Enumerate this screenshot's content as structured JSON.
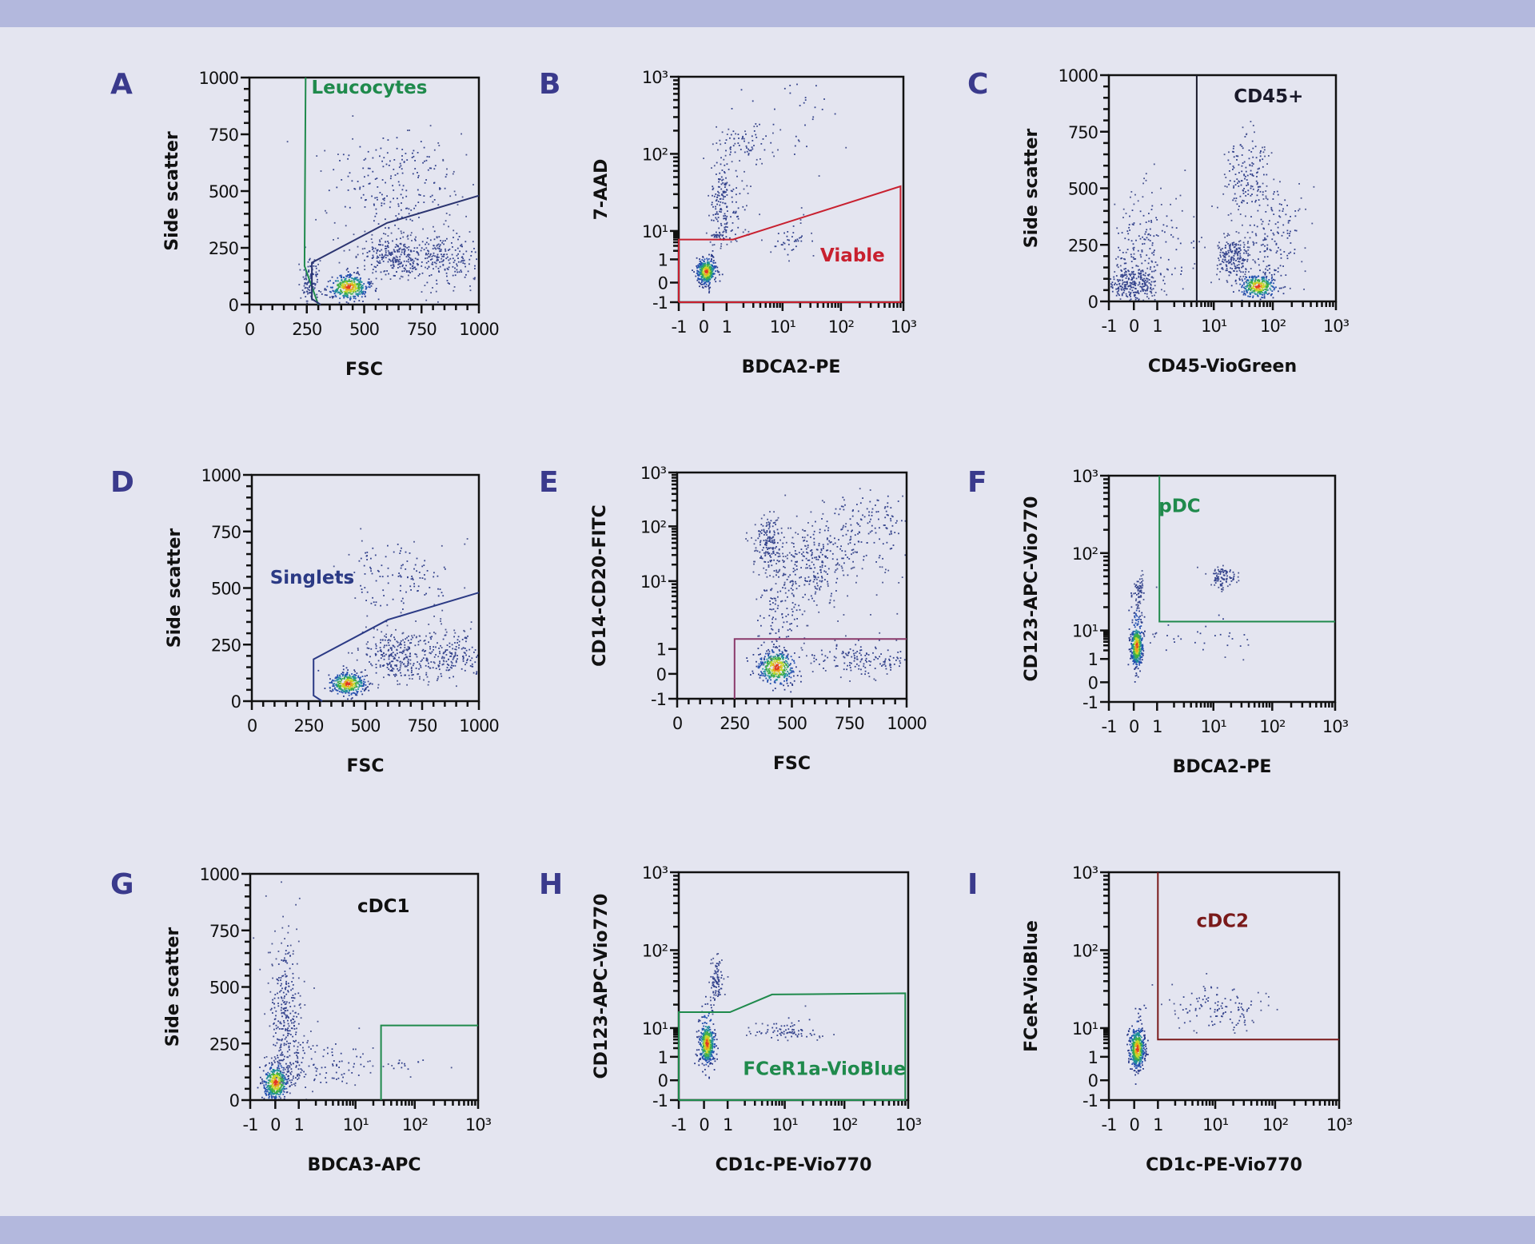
{
  "figure": {
    "background": "#e4e5f0",
    "banner_color": "#b3b8dd",
    "panel_letter_color": "#3a3a8c"
  },
  "chart_data": [
    {
      "panel": "A",
      "type": "scatter",
      "x_axis": {
        "label": "FSC",
        "type": "linear",
        "range": [
          0,
          1000
        ],
        "ticks": [
          0,
          250,
          500,
          750,
          1000
        ],
        "tick_labels": [
          "0",
          "250",
          "500",
          "750",
          "1000"
        ]
      },
      "y_axis": {
        "label": "Side scatter",
        "type": "linear",
        "range": [
          0,
          1000
        ],
        "ticks": [
          0,
          250,
          500,
          750,
          1000
        ],
        "tick_labels": [
          "0",
          "250",
          "500",
          "750",
          "1000"
        ]
      },
      "gates": [
        {
          "label": "Leucocytes",
          "color": "#1f8a4c",
          "vertices": [
            [
              245,
              1000
            ],
            [
              240,
              170
            ],
            [
              300,
              0
            ]
          ]
        },
        {
          "label": "",
          "color": "#2b3470",
          "vertices": [
            [
              310,
              0
            ],
            [
              272,
              25
            ],
            [
              272,
              185
            ],
            [
              600,
              360
            ],
            [
              1000,
              480
            ]
          ]
        }
      ],
      "populations": [
        {
          "x": 430,
          "y": 80,
          "sx": 45,
          "sy": 28,
          "n": 380,
          "dense": true
        },
        {
          "x": 630,
          "y": 210,
          "sx": 80,
          "sy": 50,
          "n": 260
        },
        {
          "x": 850,
          "y": 210,
          "sx": 110,
          "sy": 70,
          "n": 240
        },
        {
          "x": 600,
          "y": 540,
          "sx": 150,
          "sy": 130,
          "n": 220
        },
        {
          "x": 265,
          "y": 110,
          "sx": 22,
          "sy": 55,
          "n": 110
        }
      ]
    },
    {
      "panel": "B",
      "type": "scatter",
      "x_axis": {
        "label": "BDCA2-PE",
        "type": "biexponential",
        "range": [
          -1,
          1000
        ],
        "ticks": [
          -1,
          0,
          1,
          10,
          100,
          1000
        ],
        "tick_labels": [
          "-1",
          "0",
          "1",
          "10¹",
          "10²",
          "10³"
        ]
      },
      "y_axis": {
        "label": "7-AAD",
        "type": "biexponential",
        "range": [
          -1,
          1000
        ],
        "ticks": [
          -1,
          0,
          1,
          10,
          100,
          1000
        ],
        "tick_labels": [
          "-1",
          "0",
          "1",
          "10¹",
          "10²",
          "10³"
        ]
      },
      "gates": [
        {
          "label": "Viable",
          "color": "#c8202f",
          "vertices": [
            [
              -1,
              -1
            ],
            [
              -1,
              5
            ],
            [
              1.3,
              5
            ],
            [
              900,
              38
            ],
            [
              900,
              -1
            ],
            [
              -1,
              -1
            ]
          ]
        }
      ],
      "populations": [
        {
          "x": 0.1,
          "y": 0.5,
          "sx": 0.2,
          "sy": 0.28,
          "n": 420,
          "dense": true
        },
        {
          "x": 0.8,
          "y": 20,
          "sx": 0.3,
          "sy": 0.4,
          "n": 220
        },
        {
          "x": 2,
          "y": 140,
          "sx": 0.3,
          "sy": 0.12,
          "n": 60
        },
        {
          "x": 15,
          "y": 4,
          "sx": 0.2,
          "sy": 0.3,
          "n": 40
        },
        {
          "x": 8,
          "y": 300,
          "sx": 0.6,
          "sy": 0.4,
          "n": 40
        }
      ]
    },
    {
      "panel": "C",
      "type": "scatter",
      "x_axis": {
        "label": "CD45-VioGreen",
        "type": "biexponential",
        "range": [
          -1,
          1000
        ],
        "ticks": [
          -1,
          0,
          1,
          10,
          100,
          1000
        ],
        "tick_labels": [
          "-1",
          "0",
          "1",
          "10¹",
          "10²",
          "10³"
        ]
      },
      "y_axis": {
        "label": "Side scatter",
        "type": "linear",
        "range": [
          0,
          1000
        ],
        "ticks": [
          0,
          250,
          500,
          750,
          1000
        ],
        "tick_labels": [
          "0",
          "250",
          "500",
          "750",
          "1000"
        ]
      },
      "gates": [
        {
          "label": "CD45+",
          "color": "#1a1a2a",
          "vertices": [
            [
              5,
              0
            ],
            [
              5,
              1000
            ]
          ]
        }
      ],
      "populations": [
        {
          "x": -0.1,
          "y": 80,
          "sx": 0.5,
          "sy": 45,
          "n": 260
        },
        {
          "x": 0.5,
          "y": 240,
          "sx": 0.7,
          "sy": 120,
          "n": 200
        },
        {
          "x": 55,
          "y": 70,
          "sx": 0.15,
          "sy": 25,
          "n": 320,
          "dense": true
        },
        {
          "x": 22,
          "y": 190,
          "sx": 0.15,
          "sy": 45,
          "n": 200
        },
        {
          "x": 35,
          "y": 560,
          "sx": 0.2,
          "sy": 100,
          "n": 160
        },
        {
          "x": 100,
          "y": 300,
          "sx": 0.25,
          "sy": 120,
          "n": 160
        }
      ]
    },
    {
      "panel": "D",
      "type": "scatter",
      "x_axis": {
        "label": "FSC",
        "type": "linear",
        "range": [
          0,
          1000
        ],
        "ticks": [
          0,
          250,
          500,
          750,
          1000
        ],
        "tick_labels": [
          "0",
          "250",
          "500",
          "750",
          "1000"
        ]
      },
      "y_axis": {
        "label": "Side scatter",
        "type": "linear",
        "range": [
          0,
          1000
        ],
        "ticks": [
          0,
          250,
          500,
          750,
          1000
        ],
        "tick_labels": [
          "0",
          "250",
          "500",
          "750",
          "1000"
        ]
      },
      "gates": [
        {
          "label": "Singlets",
          "color": "#2b3a85",
          "vertices": [
            [
              310,
              0
            ],
            [
              272,
              25
            ],
            [
              272,
              185
            ],
            [
              600,
              360
            ],
            [
              1000,
              480
            ]
          ]
        }
      ],
      "populations": [
        {
          "x": 420,
          "y": 80,
          "sx": 40,
          "sy": 25,
          "n": 360,
          "dense": true
        },
        {
          "x": 640,
          "y": 200,
          "sx": 90,
          "sy": 55,
          "n": 260
        },
        {
          "x": 870,
          "y": 200,
          "sx": 100,
          "sy": 60,
          "n": 220
        },
        {
          "x": 650,
          "y": 550,
          "sx": 130,
          "sy": 90,
          "n": 130
        }
      ]
    },
    {
      "panel": "E",
      "type": "scatter",
      "x_axis": {
        "label": "FSC",
        "type": "linear",
        "range": [
          0,
          1000
        ],
        "ticks": [
          0,
          250,
          500,
          750,
          1000
        ],
        "tick_labels": [
          "0",
          "250",
          "500",
          "750",
          "1000"
        ]
      },
      "y_axis": {
        "label": "CD14-CD20-FITC",
        "type": "biexponential",
        "range": [
          -1,
          1000
        ],
        "ticks": [
          -1,
          0,
          1,
          10,
          100,
          1000
        ],
        "tick_labels": [
          "-1",
          "0",
          "1",
          "10¹",
          "10²",
          "10³"
        ]
      },
      "gates": [
        {
          "label": "",
          "color": "#8a3a6b",
          "vertices": [
            [
              250,
              -1
            ],
            [
              250,
              1.4
            ],
            [
              1000,
              1.4
            ]
          ]
        }
      ],
      "populations": [
        {
          "x": 430,
          "y": 0.3,
          "sx": 40,
          "sy": 0.35,
          "n": 380,
          "dense": true
        },
        {
          "x": 400,
          "y": 50,
          "sx": 35,
          "sy": 0.25,
          "n": 170
        },
        {
          "x": 600,
          "y": 20,
          "sx": 90,
          "sy": 0.35,
          "n": 220
        },
        {
          "x": 820,
          "y": 90,
          "sx": 150,
          "sy": 0.4,
          "n": 220
        },
        {
          "x": 450,
          "y": 3,
          "sx": 60,
          "sy": 0.5,
          "n": 130
        },
        {
          "x": 800,
          "y": 0.6,
          "sx": 130,
          "sy": 0.35,
          "n": 170
        }
      ]
    },
    {
      "panel": "F",
      "type": "scatter",
      "x_axis": {
        "label": "BDCA2-PE",
        "type": "biexponential",
        "range": [
          -1,
          1000
        ],
        "ticks": [
          -1,
          0,
          1,
          10,
          100,
          1000
        ],
        "tick_labels": [
          "-1",
          "0",
          "1",
          "10¹",
          "10²",
          "10³"
        ]
      },
      "y_axis": {
        "label": "CD123-APC-Vio770",
        "type": "biexponential",
        "range": [
          -1,
          1000
        ],
        "ticks": [
          -1,
          0,
          1,
          10,
          100,
          1000
        ],
        "tick_labels": [
          "-1",
          "0",
          "1",
          "10¹",
          "10²",
          "10³"
        ]
      },
      "gates": [
        {
          "label": "pDC",
          "color": "#1f8a4c",
          "vertices": [
            [
              1.1,
              1000
            ],
            [
              1.1,
              13
            ],
            [
              1000,
              13
            ]
          ]
        }
      ],
      "populations": [
        {
          "x": 0.1,
          "y": 3,
          "sx": 0.13,
          "sy": 0.38,
          "n": 480,
          "dense": true
        },
        {
          "x": 0.2,
          "y": 35,
          "sx": 0.1,
          "sy": 0.1,
          "n": 60
        },
        {
          "x": 15,
          "y": 50,
          "sx": 0.12,
          "sy": 0.07,
          "n": 90
        },
        {
          "x": 5,
          "y": 6,
          "sx": 0.5,
          "sy": 0.4,
          "n": 35
        }
      ]
    },
    {
      "panel": "G",
      "type": "scatter",
      "x_axis": {
        "label": "BDCA3-APC",
        "type": "biexponential",
        "range": [
          -1,
          1000
        ],
        "ticks": [
          -1,
          0,
          1,
          10,
          100,
          1000
        ],
        "tick_labels": [
          "-1",
          "0",
          "1",
          "10¹",
          "10²",
          "10³"
        ]
      },
      "y_axis": {
        "label": "Side scatter",
        "type": "linear",
        "range": [
          0,
          1000
        ],
        "ticks": [
          0,
          250,
          500,
          750,
          1000
        ],
        "tick_labels": [
          "0",
          "250",
          "500",
          "750",
          "1000"
        ]
      },
      "gates": [
        {
          "label": "cDC1",
          "color": "#1f8a4c",
          "vertices": [
            [
              27,
              0
            ],
            [
              27,
              330
            ],
            [
              1000,
              330
            ]
          ]
        }
      ],
      "populations": [
        {
          "x": 0,
          "y": 80,
          "sx": 0.25,
          "sy": 40,
          "n": 420,
          "dense": true
        },
        {
          "x": 0.4,
          "y": 400,
          "sx": 0.35,
          "sy": 170,
          "n": 300
        },
        {
          "x": 2,
          "y": 160,
          "sx": 0.5,
          "sy": 60,
          "n": 130
        },
        {
          "x": 90,
          "y": 160,
          "sx": 0.2,
          "sy": 30,
          "n": 16
        }
      ],
      "label_color": "#111111"
    },
    {
      "panel": "H",
      "type": "scatter",
      "x_axis": {
        "label": "CD1c-PE-Vio770",
        "type": "biexponential",
        "range": [
          -1,
          1000
        ],
        "ticks": [
          -1,
          0,
          1,
          10,
          100,
          1000
        ],
        "tick_labels": [
          "-1",
          "0",
          "1",
          "10¹",
          "10²",
          "10³"
        ]
      },
      "y_axis": {
        "label": "CD123-APC-Vio770",
        "type": "biexponential",
        "range": [
          -1,
          1000
        ],
        "ticks": [
          -1,
          0,
          1,
          10,
          100,
          1000
        ],
        "tick_labels": [
          "-1",
          "0",
          "1",
          "10¹",
          "10²",
          "10³"
        ]
      },
      "gates": [
        {
          "label": "FCeR1a-VioBlue",
          "color": "#1f8a4c",
          "vertices": [
            [
              -1,
              -1
            ],
            [
              -1,
              16
            ],
            [
              1.1,
              16
            ],
            [
              6,
              27
            ],
            [
              900,
              28
            ],
            [
              900,
              -1
            ],
            [
              -1,
              -1
            ]
          ]
        }
      ],
      "populations": [
        {
          "x": 0.1,
          "y": 3,
          "sx": 0.16,
          "sy": 0.38,
          "n": 460,
          "dense": true
        },
        {
          "x": 0.5,
          "y": 40,
          "sx": 0.15,
          "sy": 0.15,
          "n": 90
        },
        {
          "x": 12,
          "y": 8,
          "sx": 0.35,
          "sy": 0.15,
          "n": 80
        }
      ]
    },
    {
      "panel": "I",
      "type": "scatter",
      "x_axis": {
        "label": "CD1c-PE-Vio770",
        "type": "biexponential",
        "range": [
          -1,
          1000
        ],
        "ticks": [
          -1,
          0,
          1,
          10,
          100,
          1000
        ],
        "tick_labels": [
          "-1",
          "0",
          "1",
          "10¹",
          "10²",
          "10³"
        ]
      },
      "y_axis": {
        "label": "FCeR-VioBlue",
        "type": "biexponential",
        "range": [
          -1,
          1000
        ],
        "ticks": [
          -1,
          0,
          1,
          10,
          100,
          1000
        ],
        "tick_labels": [
          "-1",
          "0",
          "1",
          "10¹",
          "10²",
          "10³"
        ]
      },
      "gates": [
        {
          "label": "cDC2",
          "color": "#7a1a1a",
          "vertices": [
            [
              1,
              1000
            ],
            [
              1,
              4
            ],
            [
              1000,
              4
            ]
          ]
        }
      ],
      "populations": [
        {
          "x": 0.1,
          "y": 2,
          "sx": 0.16,
          "sy": 0.38,
          "n": 500,
          "dense": true
        },
        {
          "x": 10,
          "y": 18,
          "sx": 0.4,
          "sy": 0.17,
          "n": 120
        }
      ]
    }
  ]
}
